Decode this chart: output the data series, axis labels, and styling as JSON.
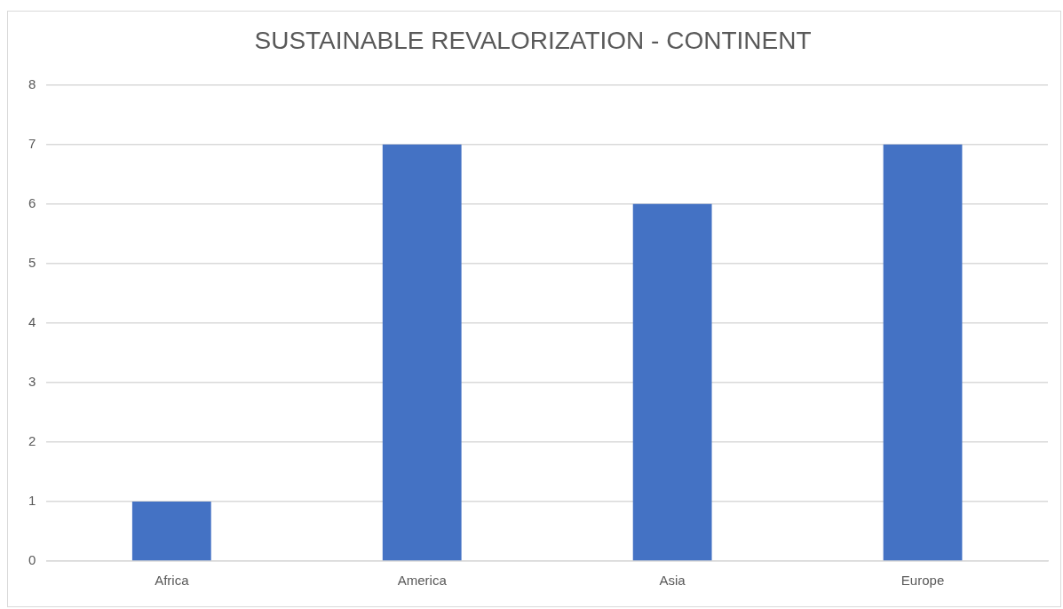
{
  "chart_data": {
    "type": "bar",
    "title": "SUSTAINABLE REVALORIZATION - CONTINENT",
    "categories": [
      "Africa",
      "America",
      "Asia",
      "Europe"
    ],
    "values": [
      1,
      7,
      6,
      7
    ],
    "color": "#4472c4",
    "ylim": [
      0,
      8
    ],
    "yticks": [
      0,
      1,
      2,
      3,
      4,
      5,
      6,
      7,
      8
    ],
    "grid": "y",
    "legend": false
  }
}
